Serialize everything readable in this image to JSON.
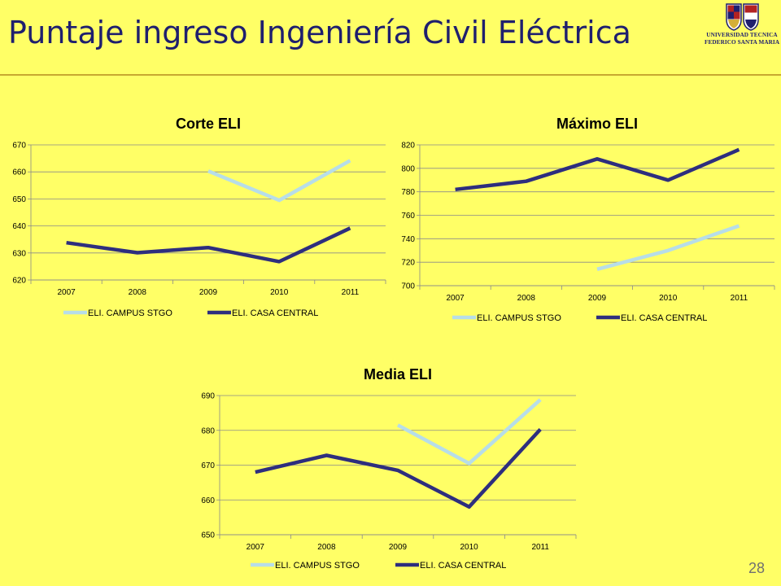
{
  "slide": {
    "title": "Puntaje ingreso Ingeniería Civil Eléctrica",
    "page_number": "28",
    "logo": {
      "line1": "UNIVERSIDAD TECNICA",
      "line2": "FEDERICO SANTA MARIA"
    }
  },
  "colors": {
    "background": "#FFFF66",
    "campus_stgo": "#B7DDE8",
    "casa_central": "#2E2E7E",
    "title": "#1F1F6E"
  },
  "chart_data": [
    {
      "type": "line",
      "title": "Corte ELI",
      "categories": [
        "2007",
        "2008",
        "2009",
        "2010",
        "2011"
      ],
      "yticks": [
        "620",
        "630",
        "640",
        "650",
        "660",
        "670"
      ],
      "ylim": [
        620,
        670
      ],
      "grid": true,
      "legend": "bottom",
      "series": [
        {
          "name": "ELI. CAMPUS STGO",
          "color": "#B7DDE8",
          "values": [
            null,
            null,
            660.3,
            649.5,
            664.2
          ]
        },
        {
          "name": "ELI. CASA CENTRAL",
          "color": "#2E2E7E",
          "values": [
            633.8,
            630.1,
            632.0,
            626.8,
            639.2
          ]
        }
      ]
    },
    {
      "type": "line",
      "title": "Máximo ELI",
      "categories": [
        "2007",
        "2008",
        "2009",
        "2010",
        "2011"
      ],
      "yticks": [
        "700",
        "720",
        "740",
        "760",
        "780",
        "800",
        "820"
      ],
      "ylim": [
        700,
        820
      ],
      "grid": true,
      "legend": "bottom",
      "series": [
        {
          "name": "ELI. CAMPUS STGO",
          "color": "#B7DDE8",
          "values": [
            null,
            null,
            714,
            730,
            751
          ]
        },
        {
          "name": "ELI. CASA CENTRAL",
          "color": "#2E2E7E",
          "values": [
            782,
            789,
            808,
            790,
            816
          ]
        }
      ]
    },
    {
      "type": "line",
      "title": "Media ELI",
      "categories": [
        "2007",
        "2008",
        "2009",
        "2010",
        "2011"
      ],
      "yticks": [
        "650",
        "660",
        "670",
        "680",
        "690"
      ],
      "ylim": [
        650,
        690
      ],
      "grid": true,
      "legend": "bottom",
      "series": [
        {
          "name": "ELI. CAMPUS STGO",
          "color": "#B7DDE8",
          "values": [
            null,
            null,
            681.5,
            670.5,
            688.8
          ]
        },
        {
          "name": "ELI. CASA CENTRAL",
          "color": "#2E2E7E",
          "values": [
            668.0,
            672.8,
            668.5,
            658.0,
            680.3
          ]
        }
      ]
    }
  ]
}
